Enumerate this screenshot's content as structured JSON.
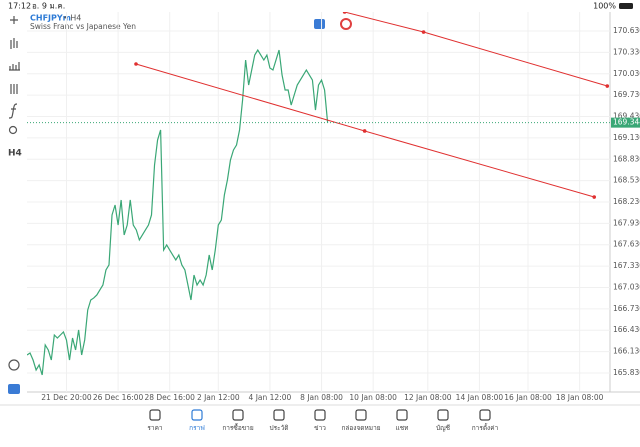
{
  "status_bar": {
    "time": "17:12",
    "date": "อ. 9 ม.ค.",
    "battery": "100%"
  },
  "header": {
    "symbol": "CHFJPYm",
    "timeframe": "• H4",
    "description": "Swiss Franc vs Japanese Yen"
  },
  "toolbar": {
    "period": "H4"
  },
  "chart_data": {
    "type": "line",
    "series": [
      {
        "name": "CHFJPYm",
        "color": "#3aa776",
        "values": [
          166.083,
          166.111,
          166.012,
          165.872,
          165.942,
          165.802,
          166.223,
          166.153,
          166.012,
          166.363,
          166.321,
          166.363,
          166.406,
          166.293,
          166.012,
          166.321,
          166.153,
          166.434,
          166.083,
          166.293,
          166.714,
          166.855,
          166.883,
          166.925,
          166.995,
          167.065,
          167.276,
          167.346,
          168.048,
          168.188,
          167.907,
          168.258,
          167.767,
          167.907,
          168.258,
          167.907,
          167.837,
          167.697,
          167.767,
          167.837,
          167.907,
          168.048,
          168.749,
          169.1,
          169.241,
          167.556,
          167.627,
          167.556,
          167.486,
          167.416,
          167.486,
          167.346,
          167.276,
          167.065,
          166.855,
          167.205,
          167.065,
          167.135,
          167.065,
          167.205,
          167.486,
          167.276,
          167.556,
          167.907,
          167.977,
          168.328,
          168.539,
          168.819,
          168.96,
          169.03,
          169.241,
          169.662,
          170.223,
          169.872,
          170.083,
          170.293,
          170.363,
          170.293,
          170.223,
          170.293,
          170.111,
          170.083,
          170.223,
          170.363,
          170.012,
          169.802,
          169.802,
          169.591,
          169.732,
          169.872,
          169.942,
          170.012,
          170.083,
          170.012,
          169.942,
          169.521,
          169.872,
          169.942,
          169.802,
          169.344
        ]
      }
    ],
    "current_price": 169.344,
    "trendlines": [
      {
        "color": "#e03030",
        "points": [
          [
            35.9,
            170.167
          ],
          [
            111.2,
            169.227
          ],
          [
            186.8,
            168.3
          ]
        ]
      },
      {
        "color": "#e03030",
        "points": [
          [
            104.6,
            170.897
          ],
          [
            130.6,
            170.616
          ],
          [
            191.1,
            169.858
          ]
        ]
      }
    ],
    "xlim": [
      0,
      192
    ],
    "xticks": [
      {
        "value": 13,
        "label": "21 Dec 20:00"
      },
      {
        "value": 30,
        "label": "26 Dec 16:00"
      },
      {
        "value": 47,
        "label": "28 Dec 16:00"
      },
      {
        "value": 63,
        "label": "2 Jan 12:00"
      },
      {
        "value": 80,
        "label": "4 Jan 12:00"
      },
      {
        "value": 97,
        "label": "8 Jan 08:00"
      },
      {
        "value": 114,
        "label": "10 Jan 08:00"
      },
      {
        "value": 132,
        "label": "12 Jan 08:00"
      },
      {
        "value": 149,
        "label": "14 Jan 08:00"
      },
      {
        "value": 165,
        "label": "16 Jan 08:00"
      },
      {
        "value": 182,
        "label": "18 Jan 08:00"
      }
    ],
    "ylim": [
      165.563,
      170.897
    ],
    "yticks": [
      {
        "value": 165.83,
        "label": "165.830"
      },
      {
        "value": 166.13,
        "label": "166.130"
      },
      {
        "value": 166.43,
        "label": "166.430"
      },
      {
        "value": 166.73,
        "label": "166.730"
      },
      {
        "value": 167.03,
        "label": "167.030"
      },
      {
        "value": 167.33,
        "label": "167.330"
      },
      {
        "value": 167.63,
        "label": "167.630"
      },
      {
        "value": 167.93,
        "label": "167.930"
      },
      {
        "value": 168.23,
        "label": "168.230"
      },
      {
        "value": 168.53,
        "label": "168.530"
      },
      {
        "value": 168.83,
        "label": "168.830"
      },
      {
        "value": 169.13,
        "label": "169.130"
      },
      {
        "value": 169.43,
        "label": "169.430"
      },
      {
        "value": 169.73,
        "label": "169.730"
      },
      {
        "value": 170.03,
        "label": "170.030"
      },
      {
        "value": 170.33,
        "label": "170.330"
      },
      {
        "value": 170.63,
        "label": "170.630"
      }
    ],
    "grid": true
  },
  "nav": {
    "items": [
      "ราคา",
      "กราฟ",
      "การซื้อขาย",
      "ประวัติ",
      "ข่าว",
      "กล่องจดหมาย",
      "แชท",
      "บัญชี",
      "การตั้งค่า"
    ],
    "active": 1
  }
}
